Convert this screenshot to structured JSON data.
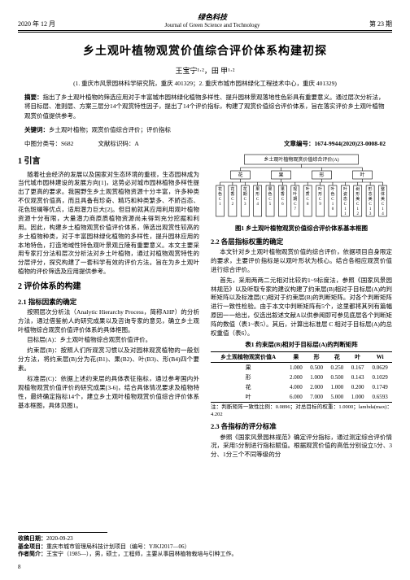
{
  "header": {
    "date": "2020 年 12 月",
    "journal_ch": "绿色科技",
    "journal_en": "Journal of Green Science and Technology",
    "issue": "第 23 期"
  },
  "title": "乡土观叶植物观赏价值综合评价体系构建初探",
  "authors": "王宝宁¹·²，田  甲¹·²",
  "affiliation": "(1. 重庆市风景园林科学研究院，重庆 401329；2. 重庆市城市园林绿化工程技术中心，重庆 401329)",
  "abstract_label": "摘要：",
  "abstract": "指出了乡土观叶植物的筛选应用对于丰富城市园林绿化植物多样性、提升园林景观落地性色彩具有重要意义。通过层次分析法，将目标层、准则层、方案三层分14个观赏特性因子，提出了14个评价指标，构建了观赏价值综合评价体系，旨在落实评价乡土观叶植物观赏价值提供参考。",
  "keywords_label": "关键词：",
  "keywords": "乡土观叶植物；观赏价值综合评价；评价指标",
  "clc_label": "中图分类号：",
  "clc": "S682",
  "docid_label": "文献标识码：",
  "docid": "A",
  "article_no_label": "文章编号：",
  "article_no": "1674-9944(2020)23-0008-02",
  "sec1_h": "1  引言",
  "sec1_p1": "随着社会经济的发展以及国家对生态环境的重视，生态园林成为当代城市园林建设的发展方向[1]，这势必对城市园林植物多样性提出了更高的要求。我国野生乡土观赏植物资源十分丰富，许多种类不仅观赏价值高，而且具备有珍奇、精巧和种类繁多、不娇百态、花色斑斓等优点，适用潜力巨大[2]。但目前就其应用利用观叶植物资源十分有限，大量潜力商原质植物资源尚未得到充分挖掘和利用。因此，构建乡土植物观赏价值评价体系，筛选出观赏性较高的乡土植物种类，对于丰富园林绿化植物的多样性，提升园林应用的本地特色，打造地域性特色观叶景观丘陵有重要意义。本文主要采用专家打分法和层次分析法对乡土叶植物，通过对植物观赏特性的分层评分，探究构建了一套科学有效的评价方法。旨在为乡土观叶植物的评价筛选及应用提供参考。",
  "sec2_h": "2  评价体系的构建",
  "sec2_1_h": "2.1  指标因素的确定",
  "sec2_1_p1": "按照层次分析法（Analytic Hierarchy Process，简称AHP）的分析方法，通过借鉴前人的研究成果以及咨询专家的意见，确立乡土观叶植物综合观赏价值评价体系的具体框图。",
  "sec2_1_p2": "目标层(A)：乡土观叶植物综合观赏价值评价。",
  "sec2_1_p3": "约束层(B)：按照人们所观赏习惯以及对园林观赏植物的一般划分方法，将约束层(B)分为花(B1)、果(B2)、叶(B3)、形(B4)四个要素。",
  "sec2_1_p4": "标准层(C)：依据上述约束层的具体表征指标，通过参考国内外观植物观赏价值评价的研究成果[3-6]，结合具体情况要求及植物特性，最终确定指标14个，建立乡土观叶植物观赏价值综合评价体系基本框图，具体见图1。",
  "fig1_cap": "图1  乡土观叶植物观赏价值综合评价体系基本框图",
  "fig1": {
    "root": "乡土观叶植物观赏价值综合评价(A)",
    "mid": [
      "花",
      "果",
      "形",
      "叶"
    ],
    "leaves": [
      "花色C1",
      "花香C2",
      "花期C3",
      "果形C4",
      "果色C5",
      "果香C6",
      "观叶期C7",
      "叶质C8",
      "叶形C9",
      "叶色C10",
      "叶姿态C11",
      "树形美C12",
      "形态美C13",
      "整体美C14"
    ],
    "colors": {
      "box_stroke": "#000",
      "box_fill": "#fff",
      "line": "#000"
    }
  },
  "sec2_2_h": "2.2  各层指标权重的确定",
  "sec2_2_p1": "本文针对乡土观叶植物观赏价值的综合评价，依据项目自身限定的要求，主要评价指标是以观叶形状为核心。结合各相应观赏价值进行综合评价。",
  "sec2_2_p2": "首先，采用两两二元相对比较的1~9标度法，参照《国家风景园林规范》以及听取专家的建议构建了约束层(B)相对于目标层(A)的判断矩阵以及标准层(C)相对于约束层(B)的判断矩阵。对各个判断矩阵进行一致性检验。由于本文中判断矩阵有5个，这里都将其列有篇幅原因一一给出，仅选出叙述文献A以供参阅即可参见底层各个判断矩阵的数值（表1~表5）。其后，计算出标准层 C 相对于目标层(A)的总权重值（表6）。",
  "tbl1_cap": "表1  约束层(B)相对于目标层(A)的判断矩阵",
  "tbl1": {
    "header": [
      "乡土观植物观赏价值A",
      "果",
      "形",
      "花",
      "叶",
      "Wi"
    ],
    "rows": [
      [
        "果",
        "1.000",
        "0.500",
        "0.250",
        "0.167",
        "0.0629"
      ],
      [
        "形",
        "2.000",
        "1.000",
        "0.500",
        "0.143",
        "0.1029"
      ],
      [
        "花",
        "4.000",
        "2.000",
        "1.000",
        "0.200",
        "0.1749"
      ],
      [
        "叶",
        "6.000",
        "7.000",
        "5.000",
        "1.000",
        "0.6593"
      ]
    ],
    "note": "注：判断矩阵一致性比例：0.0896；对总目标的权重：1.0000；lambda(max)：4.202"
  },
  "sec2_3_h": "2.3  各指标的评分标准",
  "sec2_3_p1": "参照《国家风景园林规范》确定评分指标，通过测定综合评价情况，采用5分制进行指标赋值。根据观赏价值的高低分别设立5分、3分、1分三个不同等级的分",
  "footer": {
    "recv_label": "收稿日期：",
    "recv": "2020-09-23",
    "fund_label": "基金项目：",
    "fund": "重庆市城市管理局科技计划项目（编号：YJKJ2017—06）",
    "author_label": "作者简介：",
    "author": "王宝宁（1985—），男，硕士，工程师，主要从事园林植物栽培与引种工作。"
  },
  "page_no": "8"
}
